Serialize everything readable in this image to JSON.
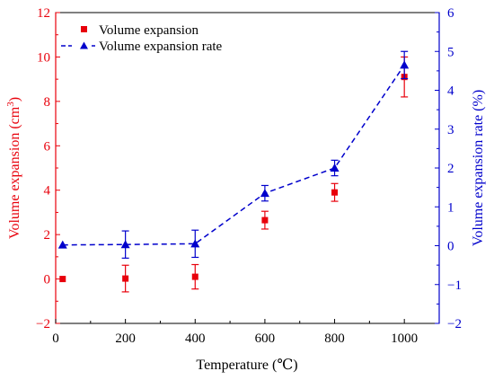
{
  "chart_data": {
    "type": "scatter",
    "xlabel": "Temperature (℃)",
    "ylabel_left": "Volume expansion (cm",
    "ylabel_left_sup": "3",
    "ylabel_left_close": ")",
    "ylabel_right": "Volume expansion rate (%)",
    "xlim": [
      0,
      1100
    ],
    "ylim_left": [
      -2,
      12
    ],
    "ylim_right": [
      -2,
      6
    ],
    "x_ticks": [
      0,
      200,
      400,
      600,
      800,
      1000
    ],
    "y_ticks_left": [
      -2,
      0,
      2,
      4,
      6,
      8,
      10,
      12
    ],
    "y_ticks_right": [
      -2,
      -1,
      0,
      1,
      2,
      3,
      4,
      5,
      6
    ],
    "grid": false,
    "legend_position": "top-left",
    "colors": {
      "left_axis": "#e8000b",
      "right_axis": "#0000cc"
    },
    "series": [
      {
        "name": "Volume expansion",
        "axis": "left",
        "marker": "square",
        "line": "none",
        "color": "#e8000b",
        "x": [
          20,
          200,
          400,
          600,
          800,
          1000
        ],
        "y": [
          0,
          0.02,
          0.1,
          2.65,
          3.9,
          9.1
        ],
        "error": [
          0,
          0.6,
          0.55,
          0.4,
          0.4,
          0.9
        ]
      },
      {
        "name": "Volume expansion rate",
        "axis": "right",
        "marker": "triangle",
        "line": "dashed",
        "color": "#0000cc",
        "x": [
          20,
          200,
          400,
          600,
          800,
          1000
        ],
        "y": [
          0.02,
          0.03,
          0.05,
          1.35,
          2.0,
          4.65
        ],
        "error": [
          0,
          0.35,
          0.35,
          0.2,
          0.2,
          0.35
        ]
      }
    ]
  }
}
